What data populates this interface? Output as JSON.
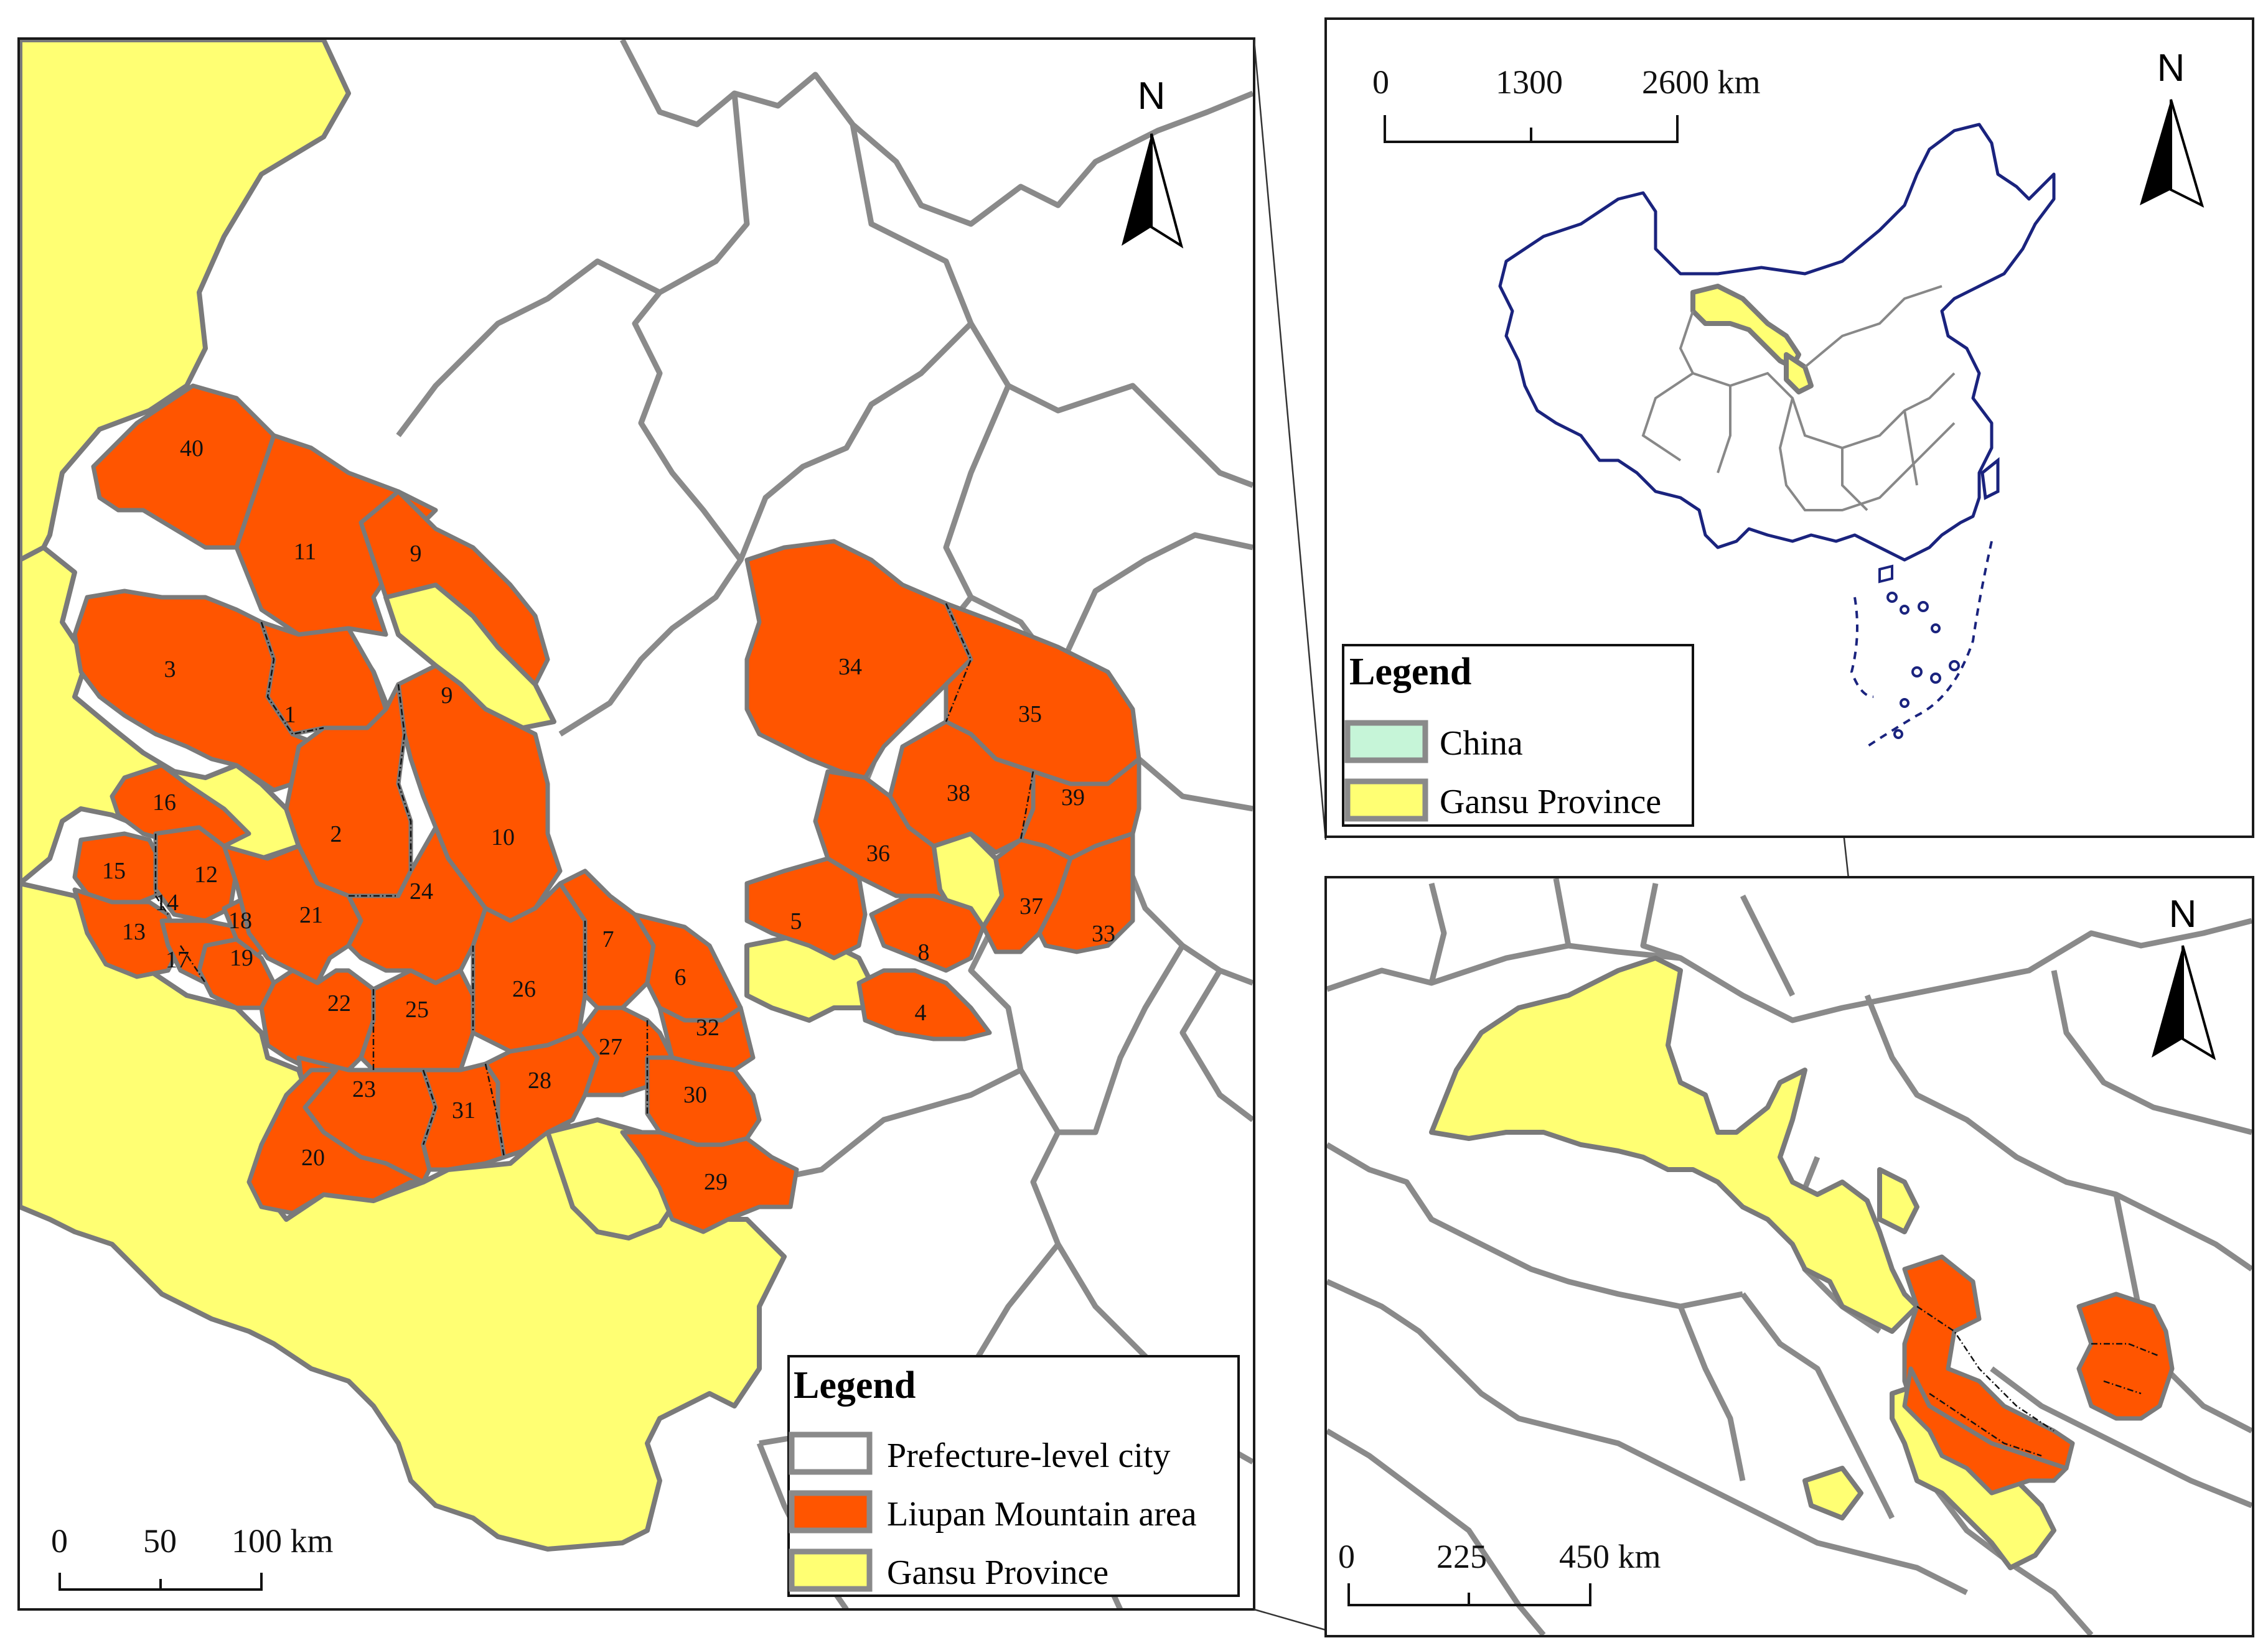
{
  "main_map": {
    "north_label": "N",
    "scale": {
      "labels": [
        "0",
        "50",
        "100 km"
      ]
    },
    "legend": {
      "title": "Legend",
      "items": [
        {
          "label": "Prefecture-level city",
          "swatch": "white"
        },
        {
          "label": "Liupan Mountain area",
          "swatch": "orange"
        },
        {
          "label": "Gansu Province",
          "swatch": "yellow"
        }
      ]
    },
    "county_labels": [
      "40",
      "11",
      "9",
      "3",
      "1",
      "9",
      "2",
      "10",
      "16",
      "15",
      "12",
      "14",
      "13",
      "17",
      "18",
      "19",
      "21",
      "24",
      "22",
      "25",
      "26",
      "7",
      "6",
      "5",
      "8",
      "4",
      "32",
      "27",
      "28",
      "30",
      "23",
      "31",
      "20",
      "29",
      "34",
      "35",
      "38",
      "39",
      "36",
      "37",
      "33"
    ]
  },
  "inset_china": {
    "north_label": "N",
    "scale": {
      "labels": [
        "0",
        "1300",
        "2600 km"
      ]
    },
    "legend": {
      "title": "Legend",
      "items": [
        {
          "label": "China",
          "swatch": "cyan"
        },
        {
          "label": "Gansu Province",
          "swatch": "yellow"
        }
      ]
    }
  },
  "inset_region": {
    "north_label": "N",
    "scale": {
      "labels": [
        "0",
        "225",
        "450 km"
      ]
    }
  },
  "colors": {
    "liupan": "#ff5500",
    "gansu": "#ffff73",
    "china": "#c6f5d8",
    "border": "#8a8a8a",
    "china_outline": "#1a237e"
  }
}
